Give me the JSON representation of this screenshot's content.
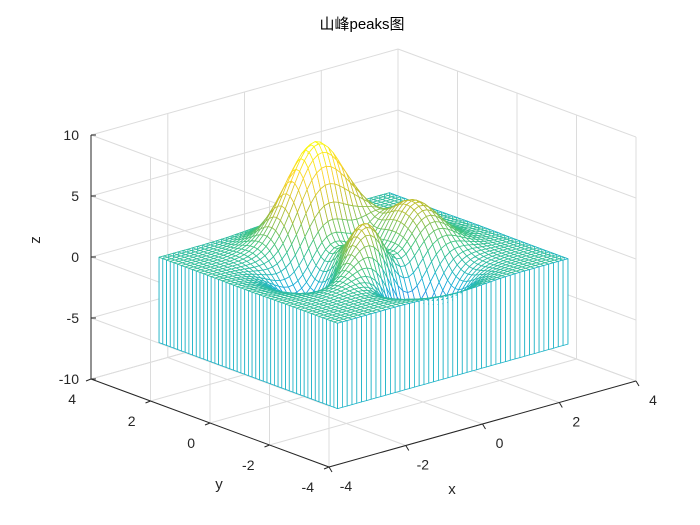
{
  "chart_data": {
    "type": "surface-mesh-with-curtain",
    "title": "山峰peaks图",
    "function": "peaks",
    "xlabel": "x",
    "ylabel": "y",
    "zlabel": "z",
    "xlim": [
      -4,
      4
    ],
    "ylim": [
      -4,
      4
    ],
    "zlim": [
      -10,
      10
    ],
    "x_ticks": [
      -4,
      -2,
      0,
      2,
      4
    ],
    "y_ticks": [
      -4,
      -2,
      0,
      2,
      4
    ],
    "z_ticks": [
      -10,
      -5,
      0,
      5,
      10
    ],
    "x_tick_labels": [
      "-4",
      "-2",
      "0",
      "2",
      "4"
    ],
    "y_tick_labels": [
      "-4",
      "-2",
      "0",
      "2",
      "4"
    ],
    "z_tick_labels": [
      "-10",
      "-5",
      "0",
      "5",
      "10"
    ],
    "grid": true,
    "view": {
      "azimuth": -37.5,
      "elevation": 30
    },
    "mesh": {
      "x_range": [
        -3,
        3
      ],
      "y_range": [
        -3,
        3
      ],
      "points": 49
    },
    "colormap": "parula",
    "colormap_stops": [
      "#3e26a8",
      "#3574f0",
      "#18b1d6",
      "#3fc480",
      "#b9bd31",
      "#fbd42c",
      "#f9fb0e"
    ],
    "curtain_color": "#19b2c6",
    "curtain_baseline_z": -7
  }
}
